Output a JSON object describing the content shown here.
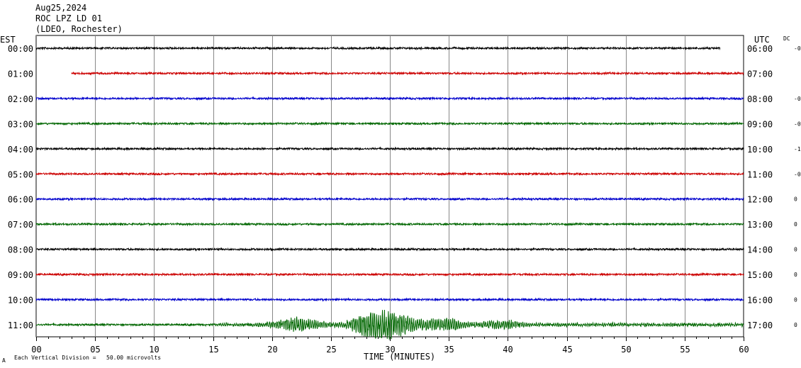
{
  "header": {
    "date": "Aug25,2024",
    "station": "ROC LPZ LD 01",
    "network": "(LDEO, Rochester)"
  },
  "labels": {
    "left_zone": "EST",
    "right_zone": "UTC",
    "dc": "DC",
    "footer_mark": "A",
    "footer_note": "Each Vertical Division =   50.00 microvolts"
  },
  "chart_data": {
    "type": "line",
    "title": "",
    "xlabel": "TIME (MINUTES)",
    "xlim": [
      0,
      60
    ],
    "x_ticks": [
      "00",
      "05",
      "10",
      "15",
      "20",
      "25",
      "30",
      "35",
      "40",
      "45",
      "50",
      "55",
      "60"
    ],
    "trace_colors": [
      "#000000",
      "#cc0000",
      "#0000cc",
      "#006600"
    ],
    "rows": [
      {
        "est": "00:00",
        "utc": "06:00",
        "dc": "-0",
        "color": "#000000",
        "start_min": 0,
        "end_min": 58
      },
      {
        "est": "01:00",
        "utc": "07:00",
        "dc": "",
        "color": "#cc0000",
        "start_min": 3,
        "end_min": 60
      },
      {
        "est": "02:00",
        "utc": "08:00",
        "dc": "-0",
        "color": "#0000cc",
        "start_min": 0,
        "end_min": 60
      },
      {
        "est": "03:00",
        "utc": "09:00",
        "dc": "-0",
        "color": "#006600",
        "start_min": 0,
        "end_min": 60
      },
      {
        "est": "04:00",
        "utc": "10:00",
        "dc": "-1",
        "color": "#000000",
        "start_min": 0,
        "end_min": 60
      },
      {
        "est": "05:00",
        "utc": "11:00",
        "dc": "-0",
        "color": "#cc0000",
        "start_min": 0,
        "end_min": 60
      },
      {
        "est": "06:00",
        "utc": "12:00",
        "dc": "0",
        "color": "#0000cc",
        "start_min": 0,
        "end_min": 60
      },
      {
        "est": "07:00",
        "utc": "13:00",
        "dc": "0",
        "color": "#006600",
        "start_min": 0,
        "end_min": 60
      },
      {
        "est": "08:00",
        "utc": "14:00",
        "dc": "0",
        "color": "#000000",
        "start_min": 0,
        "end_min": 60
      },
      {
        "est": "09:00",
        "utc": "15:00",
        "dc": "0",
        "color": "#cc0000",
        "start_min": 0,
        "end_min": 60
      },
      {
        "est": "10:00",
        "utc": "16:00",
        "dc": "0",
        "color": "#0000cc",
        "start_min": 0,
        "end_min": 60
      },
      {
        "est": "11:00",
        "utc": "17:00",
        "dc": "0",
        "color": "#006600",
        "start_min": 0,
        "end_min": 60
      }
    ],
    "event": {
      "row": "11:00",
      "start_min": 14,
      "end_min": 60,
      "peaks": [
        {
          "at_min": 22.2,
          "amp": 0.55
        },
        {
          "at_min": 28.5,
          "amp": 0.95
        },
        {
          "at_min": 30.5,
          "amp": 0.85
        },
        {
          "at_min": 34.5,
          "amp": 0.5
        },
        {
          "at_min": 39.5,
          "amp": 0.3
        }
      ]
    },
    "grid": true
  }
}
